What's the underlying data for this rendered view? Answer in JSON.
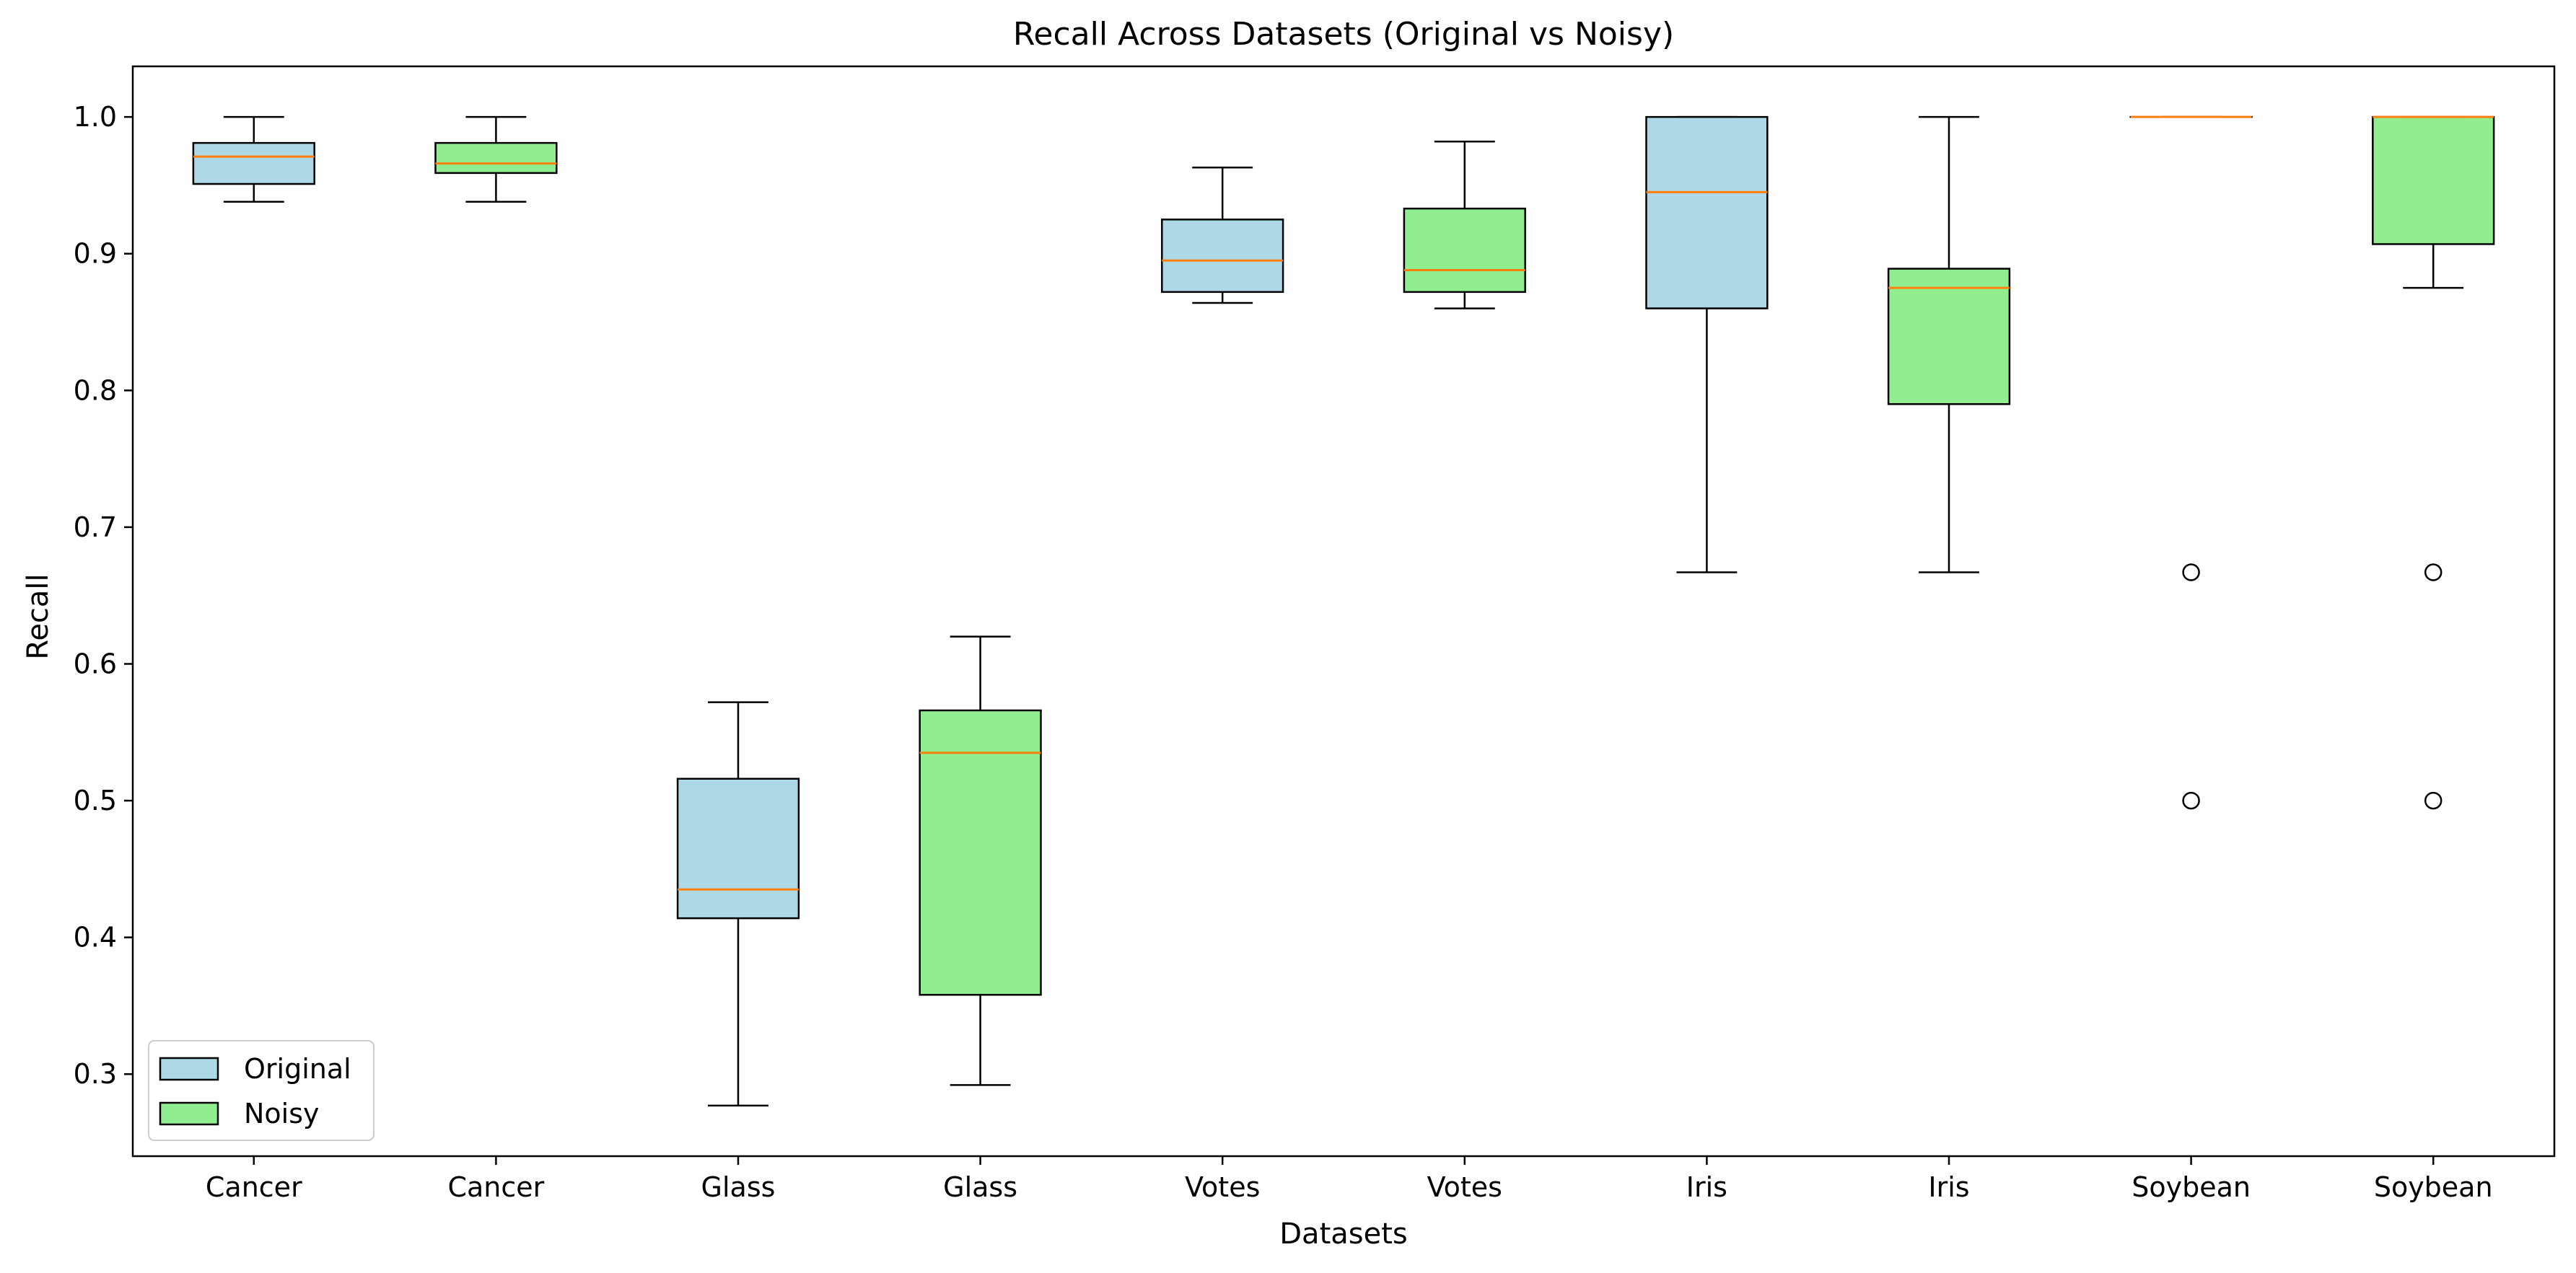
{
  "chart_data": {
    "type": "box",
    "title": "Recall Across Datasets (Original vs Noisy)",
    "xlabel": "Datasets",
    "ylabel": "Recall",
    "ylim": [
      0.24,
      1.037
    ],
    "yticks": [
      0.3,
      0.4,
      0.5,
      0.6,
      0.7,
      0.8,
      0.9,
      1.0
    ],
    "ytick_labels": [
      "0.3",
      "0.4",
      "0.5",
      "0.6",
      "0.7",
      "0.8",
      "0.9",
      "1.0"
    ],
    "categories": [
      "Cancer",
      "Cancer",
      "Glass",
      "Glass",
      "Votes",
      "Votes",
      "Iris",
      "Iris",
      "Soybean",
      "Soybean"
    ],
    "legend": {
      "position": "lower left",
      "entries": [
        {
          "label": "Original",
          "color": "#add8e6"
        },
        {
          "label": "Noisy",
          "color": "#90ee90"
        }
      ]
    },
    "colors": {
      "Original": "#add8e6",
      "Noisy": "#90ee90",
      "median": "#ff7f0e",
      "edge": "#000000"
    },
    "boxes": [
      {
        "category": "Cancer",
        "group": "Original",
        "whislo": 0.938,
        "q1": 0.951,
        "med": 0.971,
        "q3": 0.981,
        "whishi": 1.0,
        "fliers": []
      },
      {
        "category": "Cancer",
        "group": "Noisy",
        "whislo": 0.938,
        "q1": 0.959,
        "med": 0.966,
        "q3": 0.981,
        "whishi": 1.0,
        "fliers": []
      },
      {
        "category": "Glass",
        "group": "Original",
        "whislo": 0.277,
        "q1": 0.414,
        "med": 0.435,
        "q3": 0.516,
        "whishi": 0.572,
        "fliers": []
      },
      {
        "category": "Glass",
        "group": "Noisy",
        "whislo": 0.292,
        "q1": 0.358,
        "med": 0.535,
        "q3": 0.566,
        "whishi": 0.62,
        "fliers": []
      },
      {
        "category": "Votes",
        "group": "Original",
        "whislo": 0.864,
        "q1": 0.872,
        "med": 0.895,
        "q3": 0.925,
        "whishi": 0.963,
        "fliers": []
      },
      {
        "category": "Votes",
        "group": "Noisy",
        "whislo": 0.86,
        "q1": 0.872,
        "med": 0.888,
        "q3": 0.933,
        "whishi": 0.982,
        "fliers": []
      },
      {
        "category": "Iris",
        "group": "Original",
        "whislo": 0.667,
        "q1": 0.86,
        "med": 0.945,
        "q3": 1.0,
        "whishi": 1.0,
        "fliers": []
      },
      {
        "category": "Iris",
        "group": "Noisy",
        "whislo": 0.667,
        "q1": 0.79,
        "med": 0.875,
        "q3": 0.889,
        "whishi": 1.0,
        "fliers": []
      },
      {
        "category": "Soybean",
        "group": "Original",
        "whislo": 1.0,
        "q1": 1.0,
        "med": 1.0,
        "q3": 1.0,
        "whishi": 1.0,
        "fliers": [
          0.667,
          0.5
        ]
      },
      {
        "category": "Soybean",
        "group": "Noisy",
        "whislo": 0.875,
        "q1": 0.907,
        "med": 1.0,
        "q3": 1.0,
        "whishi": 1.0,
        "fliers": [
          0.667,
          0.5
        ]
      }
    ]
  }
}
